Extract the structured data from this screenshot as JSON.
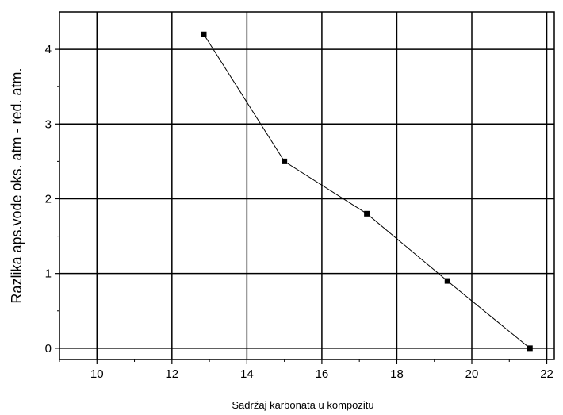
{
  "chart_data": {
    "type": "line",
    "xlabel": "Sadržaj karbonata u kompozitu",
    "ylabel": "Razlika aps.vode oks. atm - red. atm.",
    "xlim": [
      9,
      22.2
    ],
    "ylim": [
      -0.15,
      4.5
    ],
    "xticks": [
      10,
      12,
      14,
      16,
      18,
      20,
      22
    ],
    "yticks": [
      0,
      1,
      2,
      3,
      4
    ],
    "grid": true,
    "series": [
      {
        "x": [
          12.85,
          15.0,
          17.2,
          19.35,
          21.55
        ],
        "values": [
          4.2,
          2.5,
          1.8,
          0.9,
          0.0
        ],
        "marker": "square",
        "color": "#000000"
      }
    ]
  }
}
